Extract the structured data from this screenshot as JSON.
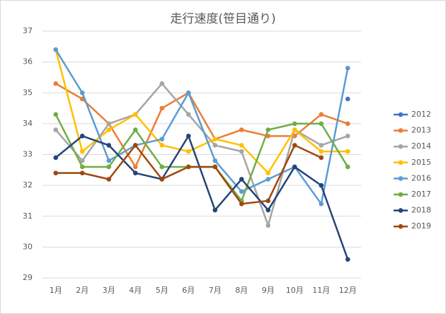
{
  "chart_data": {
    "type": "line",
    "title": "走行速度(笹目通り)",
    "categories": [
      "1月",
      "2月",
      "3月",
      "4月",
      "5月",
      "6月",
      "7月",
      "8月",
      "9月",
      "10月",
      "11月",
      "12月"
    ],
    "ylim": [
      29,
      37
    ],
    "yticks": [
      29,
      30,
      31,
      32,
      33,
      34,
      35,
      36,
      37
    ],
    "grid": true,
    "legend": "right",
    "series": [
      {
        "name": "2012",
        "color": "#4472c4",
        "values": [
          null,
          null,
          null,
          null,
          null,
          null,
          null,
          null,
          null,
          null,
          null,
          34.8
        ]
      },
      {
        "name": "2013",
        "color": "#ed7d31",
        "values": [
          35.3,
          34.8,
          34.0,
          32.6,
          34.5,
          35.0,
          33.5,
          33.8,
          33.6,
          33.6,
          34.3,
          34.0
        ]
      },
      {
        "name": "2014",
        "color": "#a5a5a5",
        "values": [
          33.8,
          32.8,
          34.0,
          34.3,
          35.3,
          34.3,
          33.3,
          33.1,
          30.7,
          33.8,
          33.3,
          33.6
        ]
      },
      {
        "name": "2015",
        "color": "#ffc000",
        "values": [
          36.4,
          33.1,
          33.8,
          34.3,
          33.3,
          33.1,
          33.5,
          33.3,
          32.4,
          33.8,
          33.1,
          33.1
        ]
      },
      {
        "name": "2016",
        "color": "#5b9bd5",
        "values": [
          36.4,
          35.0,
          32.8,
          33.3,
          33.5,
          35.0,
          32.8,
          31.8,
          32.2,
          32.6,
          31.4,
          35.8
        ]
      },
      {
        "name": "2017",
        "color": "#70ad47",
        "values": [
          34.3,
          32.6,
          32.6,
          33.8,
          32.6,
          32.6,
          32.6,
          31.5,
          33.8,
          34.0,
          34.0,
          32.6
        ]
      },
      {
        "name": "2018",
        "color": "#264478",
        "values": [
          32.9,
          33.6,
          33.3,
          32.4,
          32.2,
          33.6,
          31.2,
          32.2,
          31.2,
          32.6,
          32.0,
          29.6
        ]
      },
      {
        "name": "2019",
        "color": "#9e480e",
        "values": [
          32.4,
          32.4,
          32.2,
          33.3,
          32.2,
          32.6,
          32.6,
          31.4,
          31.5,
          33.3,
          32.9,
          null
        ]
      }
    ]
  }
}
